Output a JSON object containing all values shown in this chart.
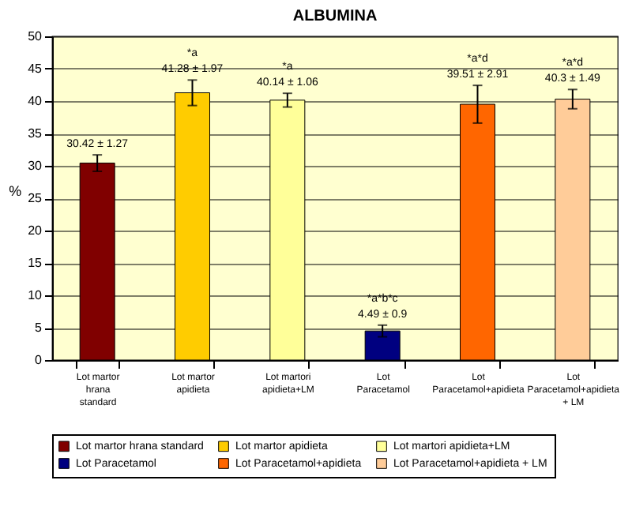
{
  "chart_data": {
    "type": "bar",
    "title": "ALBUMINA",
    "ylabel": "%",
    "categories": [
      "Lot martor hrana standard",
      "Lot martor apidieta",
      "Lot martori apidieta+LM",
      "Lot Paracetamol",
      "Lot Paracetamol+apidieta",
      "Lot Paracetamol+apidieta + LM"
    ],
    "series": [
      {
        "name": "Lot martor hrana standard",
        "color": "#800000",
        "values": [
          30.42,
          null,
          null,
          null,
          null,
          null
        ],
        "errors": [
          1.27,
          null,
          null,
          null,
          null,
          null
        ],
        "value_labels": [
          "30.42 ± 1.27",
          null,
          null,
          null,
          null,
          null
        ]
      },
      {
        "name": "Lot martor apidieta",
        "color": "#ffcc00",
        "values": [
          null,
          41.28,
          null,
          null,
          null,
          null
        ],
        "errors": [
          null,
          1.97,
          null,
          null,
          null,
          null
        ],
        "value_labels": [
          null,
          "*a\n41.28 ± 1.97",
          null,
          null,
          null,
          null
        ]
      },
      {
        "name": "Lot martori apidieta+LM",
        "color": "#ffff99",
        "values": [
          null,
          null,
          40.14,
          null,
          null,
          null
        ],
        "errors": [
          null,
          null,
          1.06,
          null,
          null,
          null
        ],
        "value_labels": [
          null,
          null,
          "*a\n40.14 ± 1.06",
          null,
          null,
          null
        ]
      },
      {
        "name": "Lot Paracetamol",
        "color": "#000080",
        "values": [
          null,
          null,
          null,
          4.49,
          null,
          null
        ],
        "errors": [
          null,
          null,
          null,
          0.9,
          null,
          null
        ],
        "value_labels": [
          null,
          null,
          null,
          "*a*b*c\n4.49 ± 0.9",
          null,
          null
        ]
      },
      {
        "name": "Lot Paracetamol+apidieta",
        "color": "#ff6600",
        "values": [
          null,
          null,
          null,
          null,
          39.51,
          null
        ],
        "errors": [
          null,
          null,
          null,
          null,
          2.91,
          null
        ],
        "value_labels": [
          null,
          null,
          null,
          null,
          "*a*d\n39.51 ± 2.91",
          null
        ]
      },
      {
        "name": "Lot Paracetamol+apidieta + LM",
        "color": "#ffcc99",
        "values": [
          null,
          null,
          null,
          null,
          null,
          40.3
        ],
        "errors": [
          null,
          null,
          null,
          null,
          null,
          1.49
        ],
        "value_labels": [
          null,
          null,
          null,
          null,
          null,
          "*a*d\n40.3 ± 1.49"
        ]
      }
    ],
    "ylim": [
      0,
      50
    ],
    "yticks": [
      0,
      5,
      10,
      15,
      20,
      25,
      30,
      35,
      40,
      45,
      50
    ],
    "grid": "y",
    "legend": "bottom"
  }
}
